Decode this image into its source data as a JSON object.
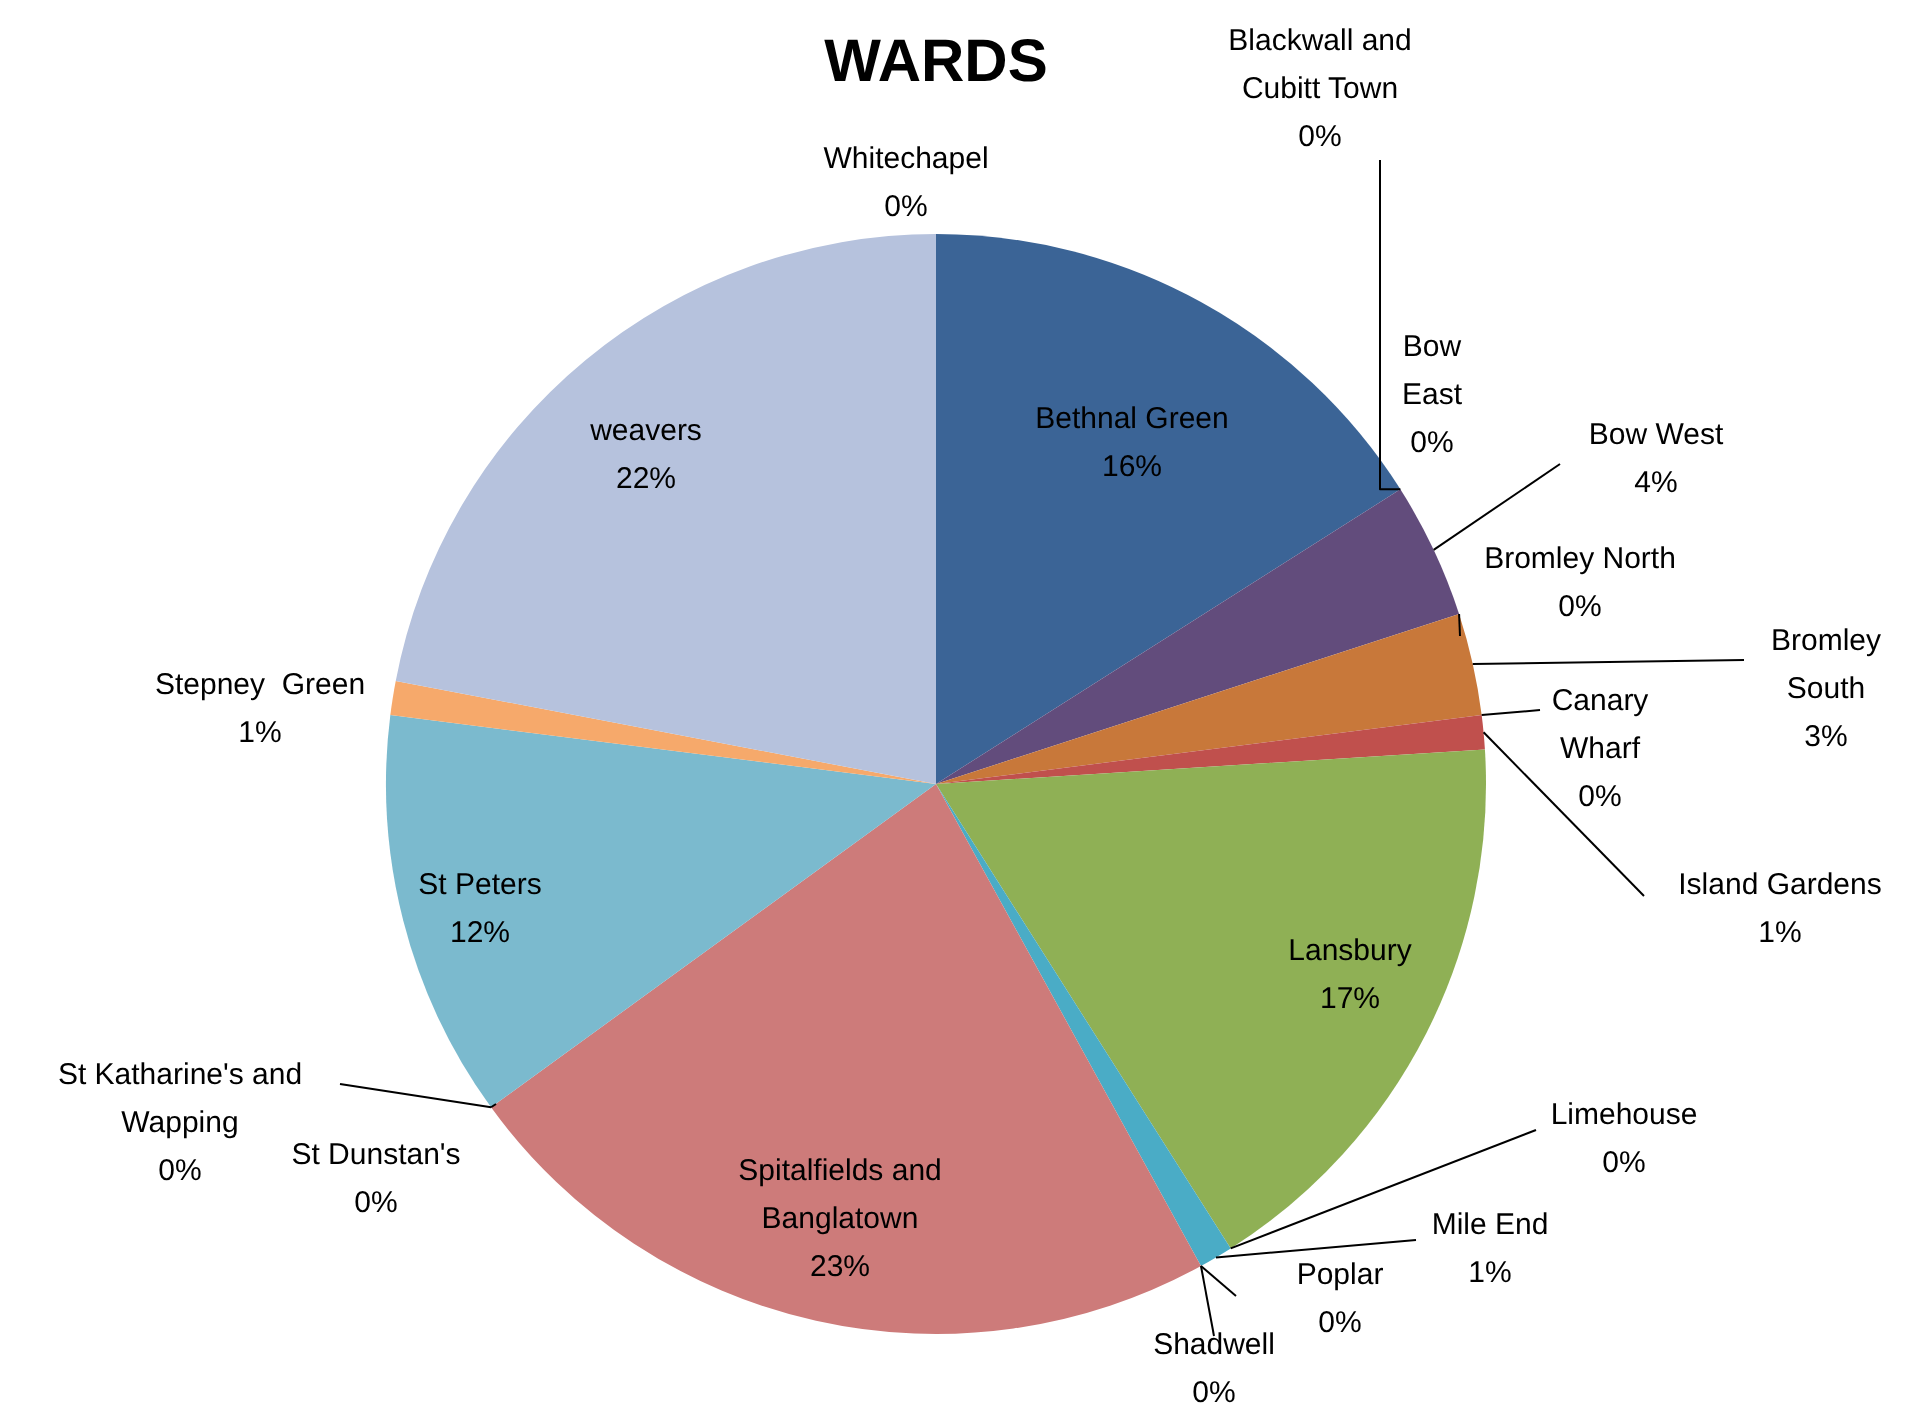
{
  "chart_data": {
    "type": "pie",
    "title": "WARDS",
    "categories": [
      "Bethnal Green",
      "Blackwall and Cubitt Town",
      "Bow East",
      "Bow West",
      "Bromley North",
      "Bromley South",
      "Canary Wharf",
      "Island Gardens",
      "Lansbury",
      "Limehouse",
      "Mile End",
      "Poplar",
      "Shadwell",
      "Spitalfields and Banglatown",
      "St Dunstan's",
      "St Katharine's and Wapping",
      "St Peters",
      "Stepney  Green",
      "weavers",
      "Whitechapel"
    ],
    "values": [
      16,
      0,
      0,
      4,
      0,
      3,
      0,
      1,
      17,
      0,
      1,
      0,
      0,
      23,
      0,
      0,
      12,
      1,
      22,
      0
    ],
    "value_labels": [
      "16%",
      "0%",
      "0%",
      "4%",
      "0%",
      "3%",
      "0%",
      "1%",
      "17%",
      "0%",
      "1%",
      "0%",
      "0%",
      "23%",
      "0%",
      "0%",
      "12%",
      "1%",
      "22%",
      "0%"
    ],
    "colors": [
      "#3b6496",
      "#9bbb59",
      "#8064a2",
      "#624c7c",
      "#4bacc6",
      "#c8783a",
      "#4f81bd",
      "#c0504d",
      "#8fb055",
      "#8064a2",
      "#4aacc6",
      "#f79646",
      "#2c4d75",
      "#cd7b7a",
      "#4f81bd",
      "#9bbb59",
      "#7bbace",
      "#f6a96b",
      "#b6c2dd",
      "#c0504d"
    ]
  }
}
